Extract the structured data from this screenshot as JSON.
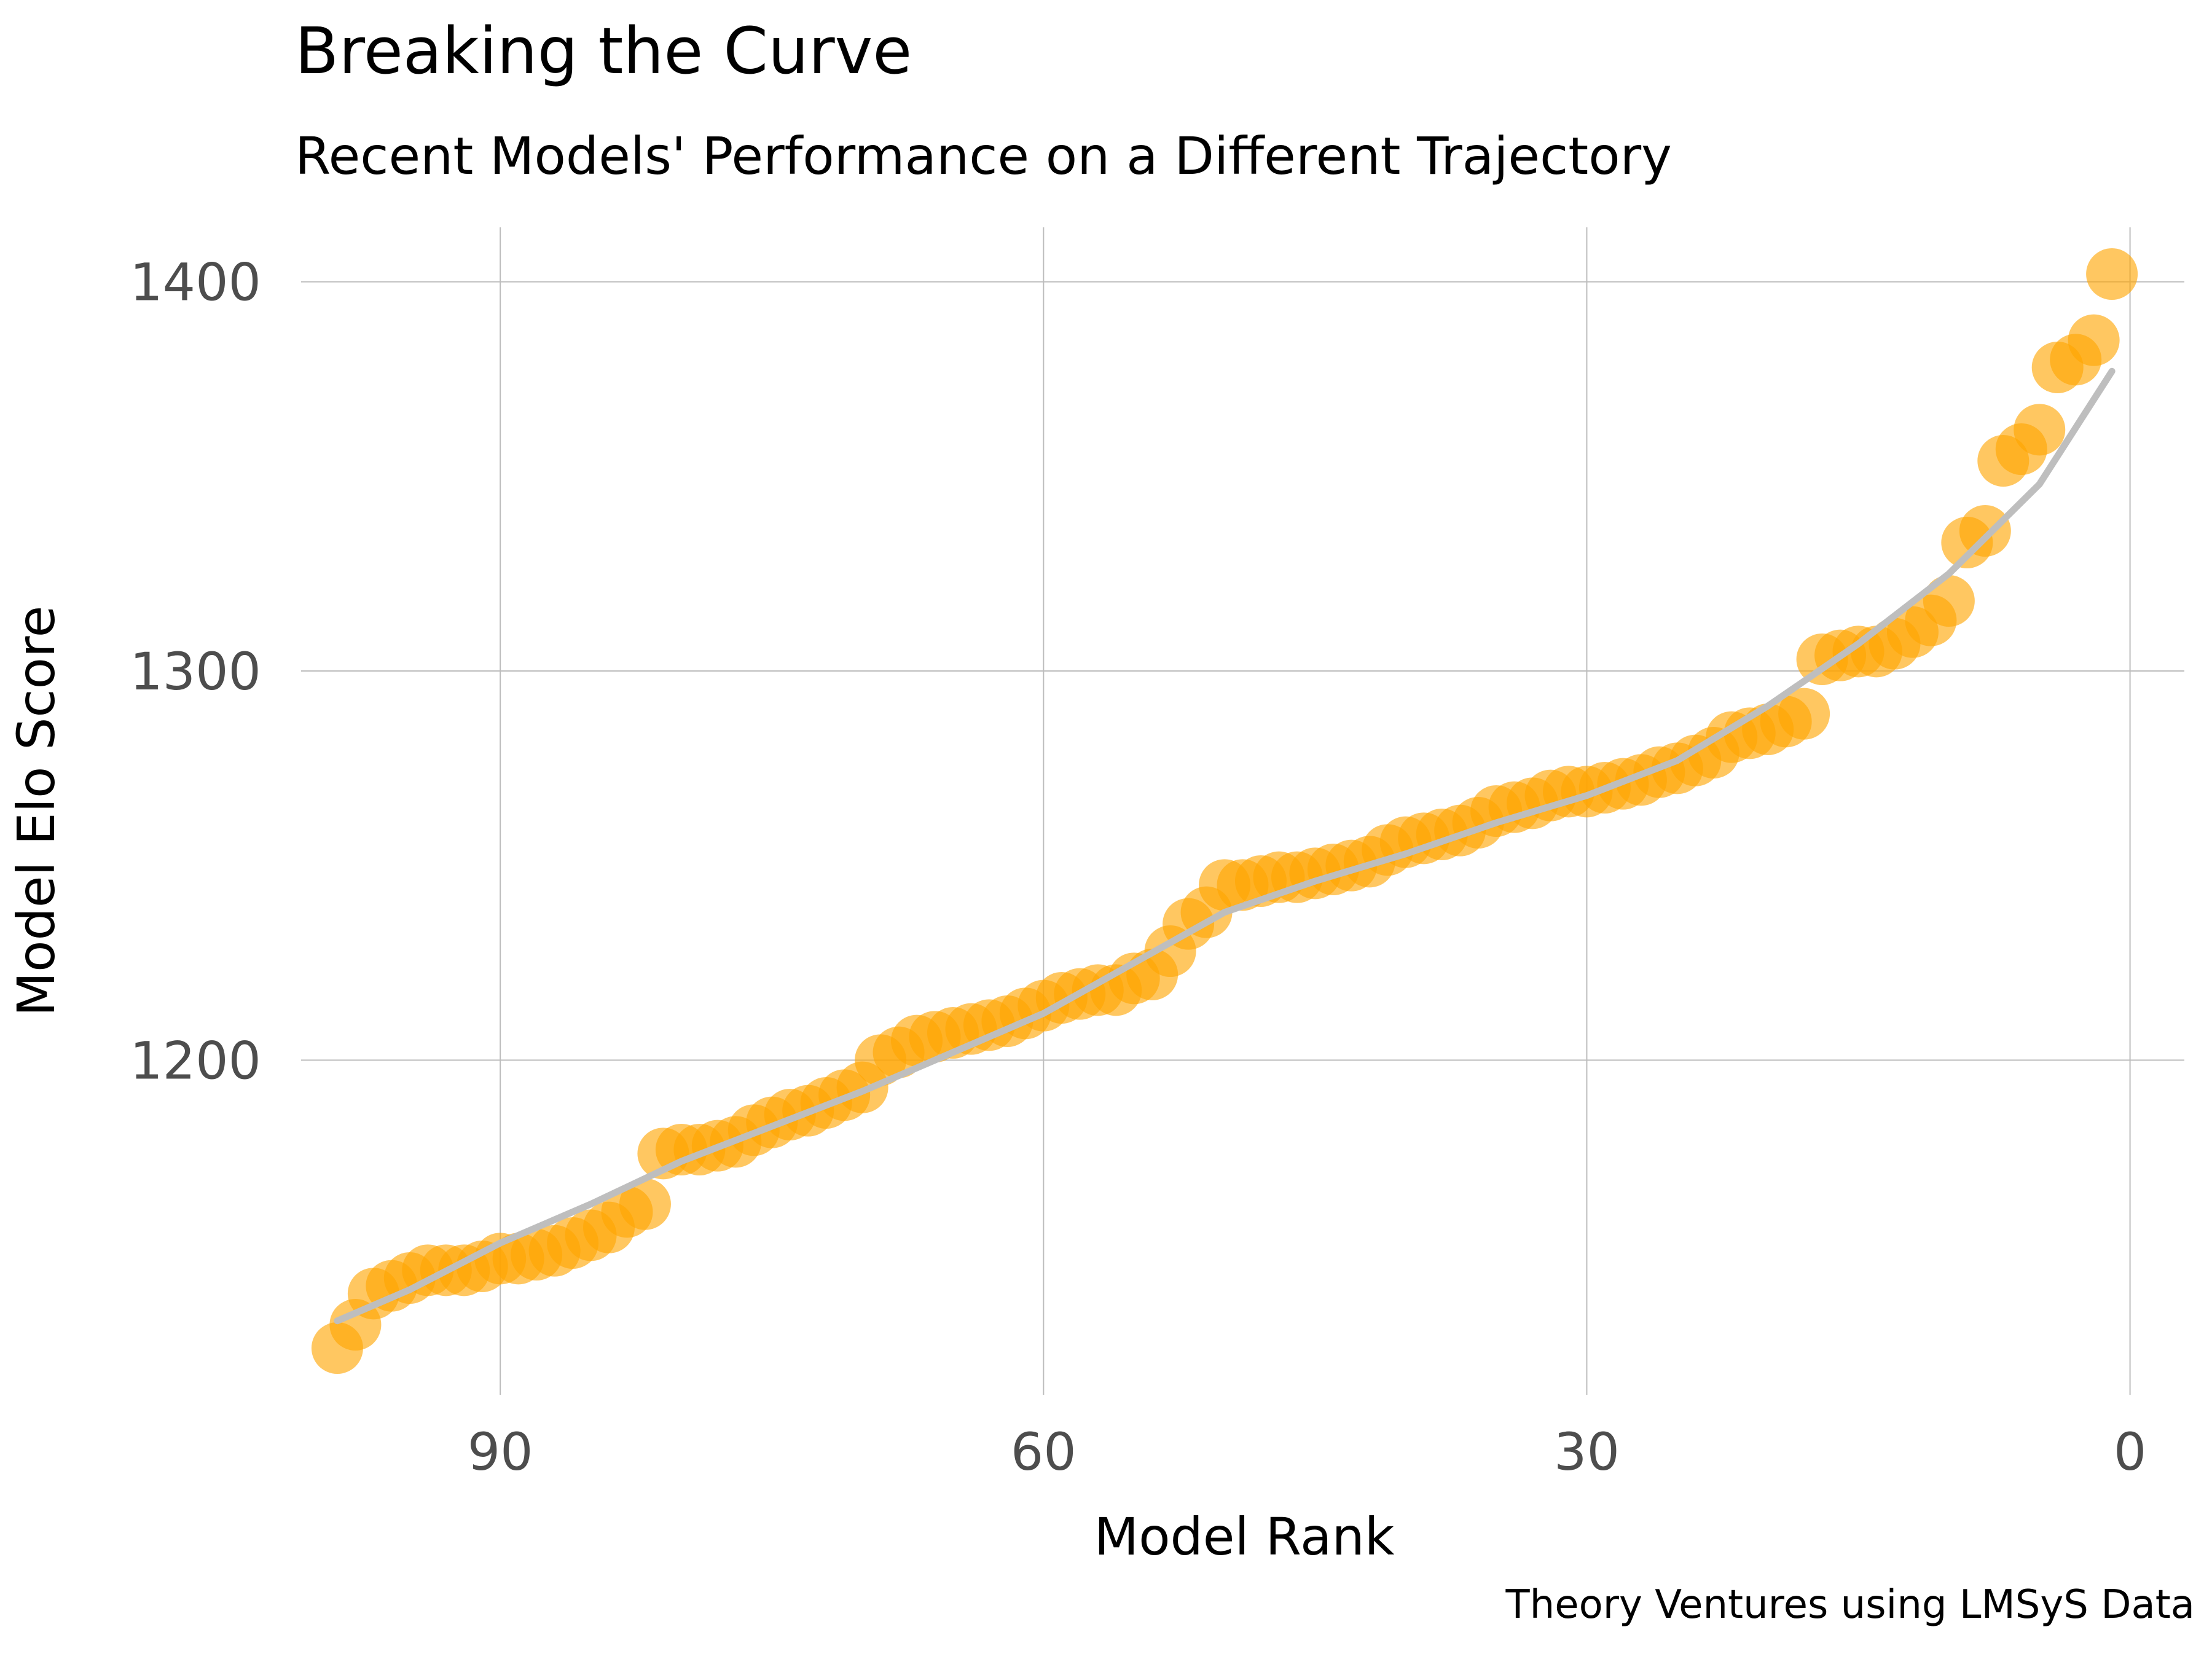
{
  "chart_data": {
    "type": "scatter",
    "title": "Breaking the Curve",
    "subtitle": "Recent Models' Performance on a Different Trajectory",
    "xlabel": "Model Rank",
    "ylabel": "Model Elo Score",
    "caption": "Theory Ventures using LMSyS Data",
    "x_reversed": true,
    "xlim": [
      101,
      -3
    ],
    "ylim": [
      1114,
      1414
    ],
    "x_ticks": [
      90,
      60,
      30,
      0
    ],
    "y_ticks": [
      1200,
      1300,
      1400
    ],
    "grid": true,
    "point_color": "#FFA500",
    "trend_color": "#BEBEBE",
    "points": {
      "x": [
        1,
        2,
        3,
        4,
        5,
        6,
        7,
        8,
        9,
        10,
        11,
        12,
        13,
        14,
        15,
        16,
        17,
        18,
        19,
        20,
        21,
        22,
        23,
        24,
        25,
        26,
        27,
        28,
        29,
        30,
        31,
        32,
        33,
        34,
        35,
        36,
        37,
        38,
        39,
        40,
        41,
        42,
        43,
        44,
        45,
        46,
        47,
        48,
        49,
        50,
        51,
        52,
        53,
        54,
        55,
        56,
        57,
        58,
        59,
        60,
        61,
        62,
        63,
        64,
        65,
        66,
        67,
        68,
        69,
        70,
        71,
        72,
        73,
        74,
        75,
        76,
        77,
        78,
        79,
        80,
        81,
        82,
        83,
        84,
        85,
        86,
        87,
        88,
        89,
        90,
        91,
        92,
        93,
        94,
        95,
        96,
        97,
        98,
        99
      ],
      "y": [
        1402,
        1385,
        1380,
        1378,
        1362,
        1357,
        1354,
        1336,
        1333,
        1318,
        1313,
        1310,
        1307,
        1305,
        1305,
        1304,
        1303,
        1289,
        1287,
        1285,
        1284,
        1283,
        1279,
        1277,
        1275,
        1274,
        1272,
        1271,
        1270,
        1269,
        1269,
        1268,
        1266,
        1265,
        1264,
        1261,
        1259,
        1258,
        1257,
        1256,
        1254,
        1251,
        1250,
        1249,
        1248,
        1247,
        1247,
        1246,
        1245,
        1245,
        1238,
        1235,
        1228,
        1222,
        1221,
        1218,
        1218,
        1217,
        1216,
        1214,
        1212,
        1210,
        1209,
        1208,
        1207,
        1206,
        1205,
        1202,
        1200,
        1193,
        1191,
        1189,
        1187,
        1186,
        1184,
        1182,
        1179,
        1178,
        1177,
        1177,
        1176,
        1163,
        1161,
        1157,
        1155,
        1153,
        1151,
        1150,
        1149,
        1149,
        1147,
        1146,
        1146,
        1146,
        1144,
        1142,
        1140,
        1132,
        1126
      ]
    },
    "trend": {
      "x": [
        1,
        5,
        10,
        15,
        20,
        25,
        30,
        35,
        40,
        45,
        50,
        55,
        60,
        65,
        70,
        75,
        80,
        85,
        90,
        95,
        99
      ],
      "y": [
        1377,
        1348,
        1325,
        1307,
        1291,
        1277,
        1268,
        1261,
        1253,
        1246,
        1238,
        1225,
        1212,
        1202,
        1192,
        1183,
        1174,
        1163,
        1153,
        1141,
        1133
      ]
    }
  }
}
